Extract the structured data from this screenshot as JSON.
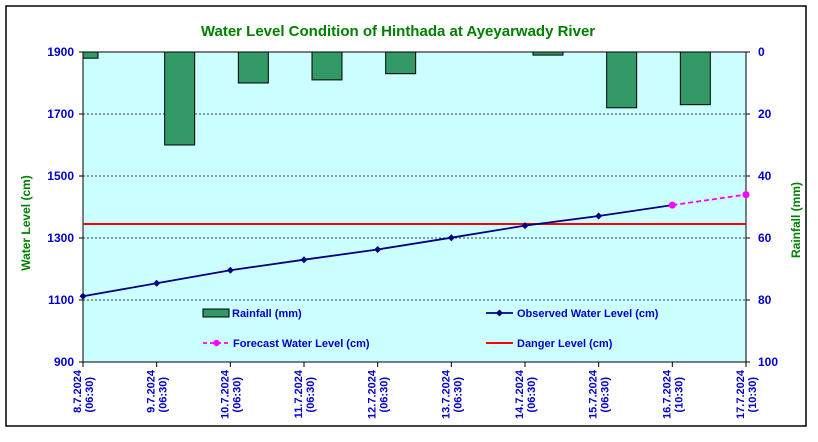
{
  "chart_data": {
    "type": "bar",
    "title": "Water Level Condition of Hinthada at Ayeyarwady River",
    "categories": [
      [
        "8.7.2024",
        "(06:30)"
      ],
      [
        "9.7.2024",
        "(06:30)"
      ],
      [
        "10.7.2024",
        "(06:30)"
      ],
      [
        "11.7.2024",
        "(06:30)"
      ],
      [
        "12.7.2024",
        "(06:30)"
      ],
      [
        "13.7.2024",
        "(06:30)"
      ],
      [
        "14.7.2024",
        "(06:30)"
      ],
      [
        "15.7.2024",
        "(06:30)"
      ],
      [
        "16.7.2024",
        "(10:30)"
      ],
      [
        "17.7.2024",
        "(10:30)"
      ]
    ],
    "ylabel": "Water Level (cm)",
    "y2label": "Rainfall (mm)",
    "ylim": [
      900,
      1900
    ],
    "yticks": [
      900,
      1100,
      1300,
      1500,
      1700,
      1900
    ],
    "y2lim": [
      0,
      100
    ],
    "y2ticks": [
      0,
      20,
      40,
      60,
      80,
      100
    ],
    "y2_inverted": true,
    "grid": true,
    "series": [
      {
        "name": "Rainfall (mm)",
        "type": "bar",
        "axis": "right",
        "color": "#339966",
        "values": [
          2,
          30,
          10,
          9,
          7,
          null,
          1,
          18,
          17,
          null
        ]
      },
      {
        "name": "Observed Water Level (cm)",
        "type": "line",
        "axis": "left",
        "color": "#000080",
        "values": [
          1112,
          1154,
          1196,
          1230,
          1263,
          1301,
          1340,
          1371,
          1406,
          null
        ]
      },
      {
        "name": "Forecast Water Level (cm)",
        "type": "line",
        "axis": "left",
        "dashed": true,
        "color": "#ff00ff",
        "values": [
          null,
          null,
          null,
          null,
          null,
          null,
          null,
          null,
          1406,
          1440
        ]
      },
      {
        "name": "Danger Level (cm)",
        "type": "hline",
        "axis": "left",
        "color": "#ff0000",
        "value": 1345
      }
    ],
    "legend": "inside-bottom",
    "colors": {
      "plot_background": "#ccffff",
      "title": "#008000",
      "tick_labels": "#0000cc",
      "axis_labels": "#008000"
    }
  }
}
